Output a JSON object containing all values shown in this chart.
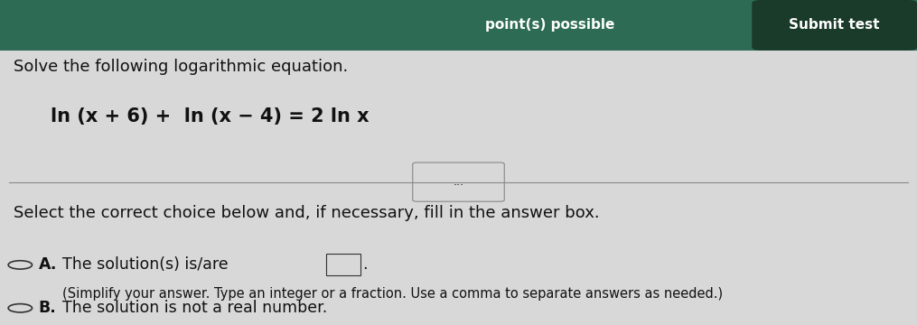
{
  "bg_color": "#e8e8e8",
  "header_bg": "#2d6b55",
  "header_text_color": "#ffffff",
  "header_points_text": "point(s) possible",
  "header_submit_text": "Submit test",
  "submit_btn_bg": "#1a3a2a",
  "body_bg": "#d8d8d8",
  "title_text": "Solve the following logarithmic equation.",
  "equation_text": "ln (x + 6) +  ln (x − 4) = 2 ln x",
  "instruction_text": "Select the correct choice below and, if necessary, fill in the answer box.",
  "choice_A_label": "A.",
  "choice_A_text": "The solution(s) is/are",
  "choice_A_sub": "(Simplify your answer. Type an integer or a fraction. Use a comma to separate answers as needed.)",
  "choice_B_label": "B.",
  "choice_B_text": "The solution is not a real number.",
  "divider_dots": "...",
  "text_color": "#111111",
  "font_size_title": 13,
  "font_size_eq": 15,
  "font_size_instruction": 13,
  "font_size_choice": 12.5,
  "font_size_sub": 10.5
}
